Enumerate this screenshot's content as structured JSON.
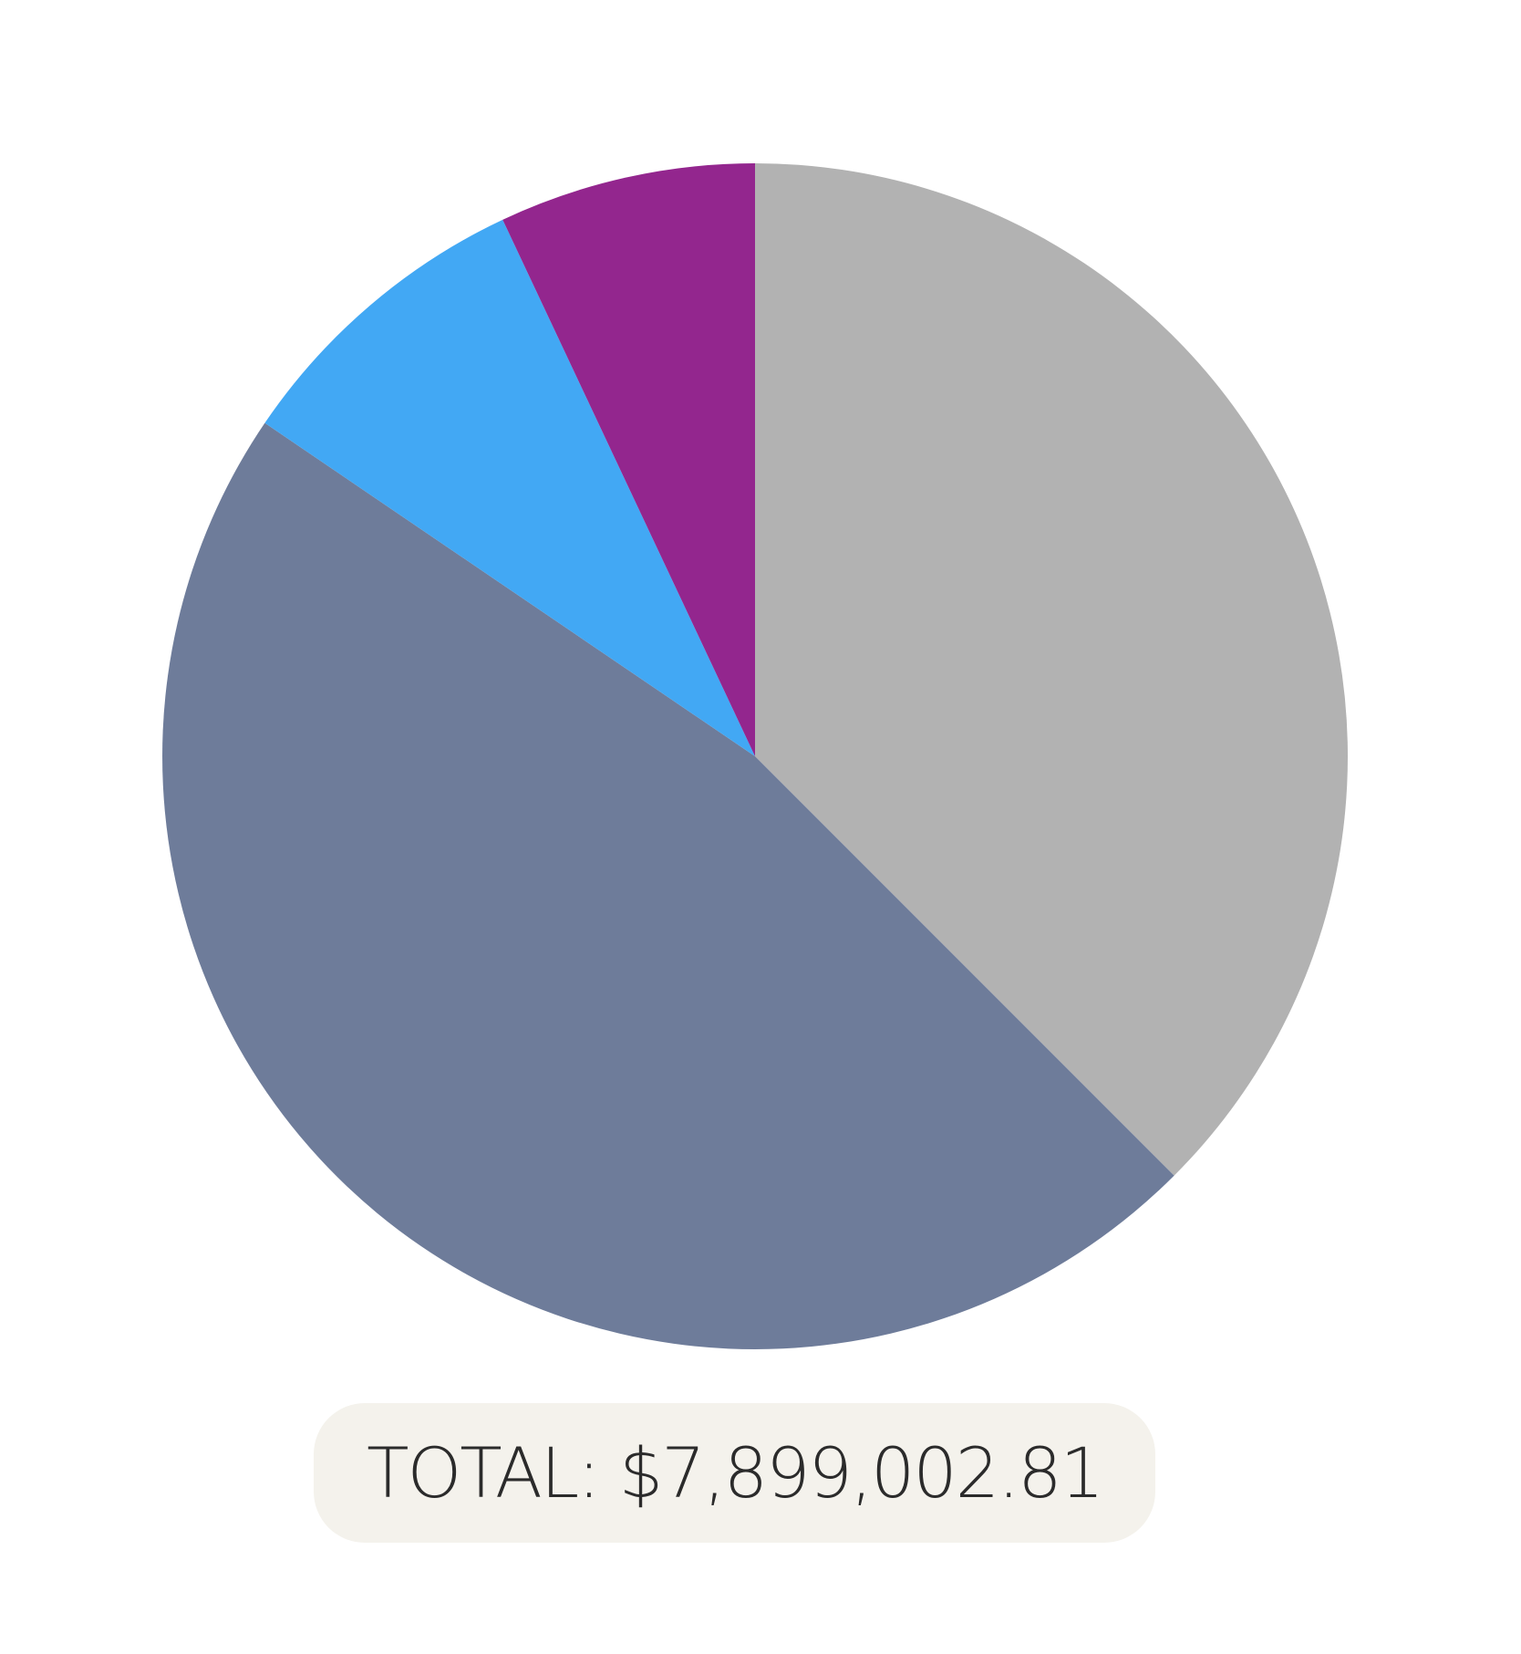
{
  "chart_data": {
    "type": "pie",
    "start_angle_deg": 0,
    "direction": "clockwise",
    "slices": [
      {
        "value": 37.5,
        "color": "#b2b2b2"
      },
      {
        "value": 47.0,
        "color": "#6e7c9a"
      },
      {
        "value": 8.5,
        "color": "#42a8f4"
      },
      {
        "value": 7.0,
        "color": "#93268e"
      }
    ]
  },
  "total": {
    "text": "TOTAL: $7,899,002.81"
  }
}
